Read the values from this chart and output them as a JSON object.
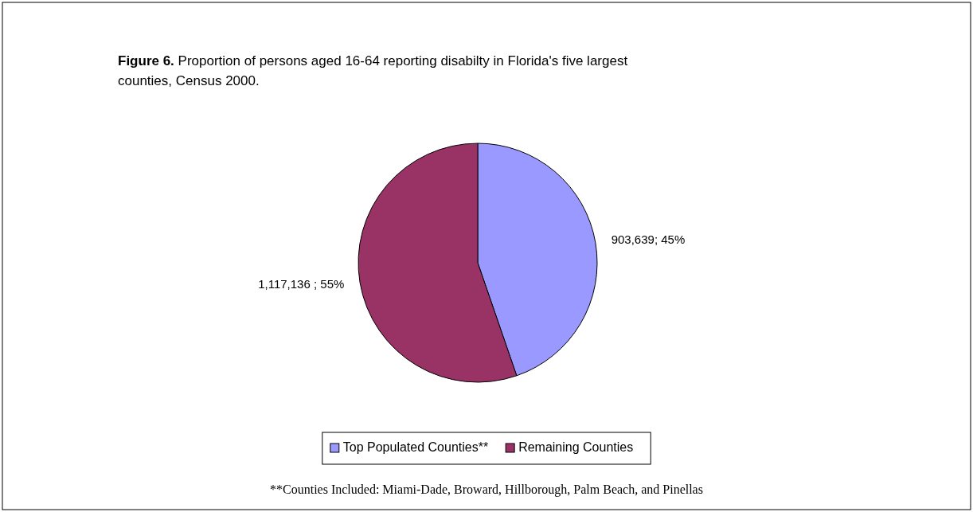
{
  "chart_data": {
    "type": "pie",
    "title": "Figure 6. Proportion of persons aged 16-64 reporting disabilty in Florida's five largest counties, Census 2000.",
    "categories": [
      "Top Populated Counties**",
      "Remaining Counties"
    ],
    "values": [
      903639,
      1117136
    ],
    "colors": [
      "#9999ff",
      "#993366"
    ],
    "value_labels": [
      "903,639; 45%",
      "1,117,136 ; 55%"
    ],
    "legend": "bottom",
    "annotations": [
      "**Counties Included: Miami-Dade, Broward, Hillborough, Palm Beach, and Pinellas"
    ]
  }
}
